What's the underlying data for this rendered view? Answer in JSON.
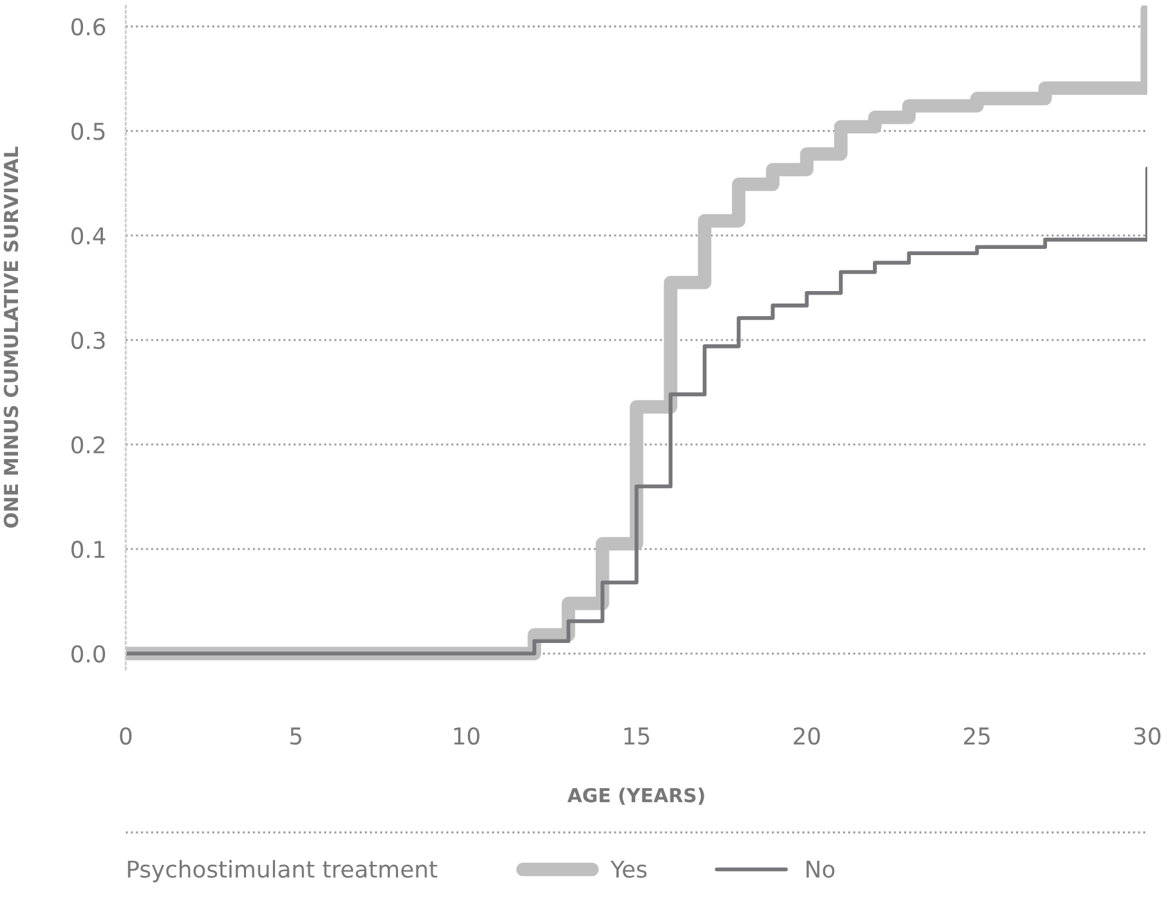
{
  "chart_data": {
    "type": "step",
    "xlabel": "AGE (YEARS)",
    "ylabel": "ONE MINUS CUMULATIVE SURVIVAL",
    "legend_title": "Psychostimulant treatment",
    "xlim": [
      0,
      30
    ],
    "xticks": [
      0,
      5,
      10,
      15,
      20,
      25,
      30
    ],
    "ylim": [
      -0.015,
      0.62
    ],
    "yticks": [
      {
        "value": 0,
        "label": "0.0"
      },
      0.1,
      0.2,
      0.3,
      0.4,
      0.5,
      0.6
    ],
    "grid": "y",
    "legend": "bottom",
    "series": [
      {
        "name": "Yes",
        "color": "#c0bfc0",
        "x": [
          0,
          12,
          13,
          14,
          15,
          16,
          17,
          18,
          19,
          20,
          21,
          22,
          23,
          25,
          27,
          30,
          30
        ],
        "values": [
          0,
          0.018,
          0.048,
          0.105,
          0.236,
          0.355,
          0.414,
          0.449,
          0.463,
          0.478,
          0.504,
          0.513,
          0.524,
          0.531,
          0.541,
          0.541,
          0.616
        ]
      },
      {
        "name": "No",
        "color": "#77767a",
        "x": [
          0,
          12,
          13,
          14,
          15,
          16,
          17,
          18,
          19,
          20,
          21,
          22,
          23,
          25,
          27,
          30,
          30
        ],
        "values": [
          0,
          0.012,
          0.031,
          0.068,
          0.16,
          0.248,
          0.294,
          0.321,
          0.333,
          0.345,
          0.365,
          0.374,
          0.383,
          0.389,
          0.396,
          0.396,
          0.464
        ]
      }
    ]
  }
}
